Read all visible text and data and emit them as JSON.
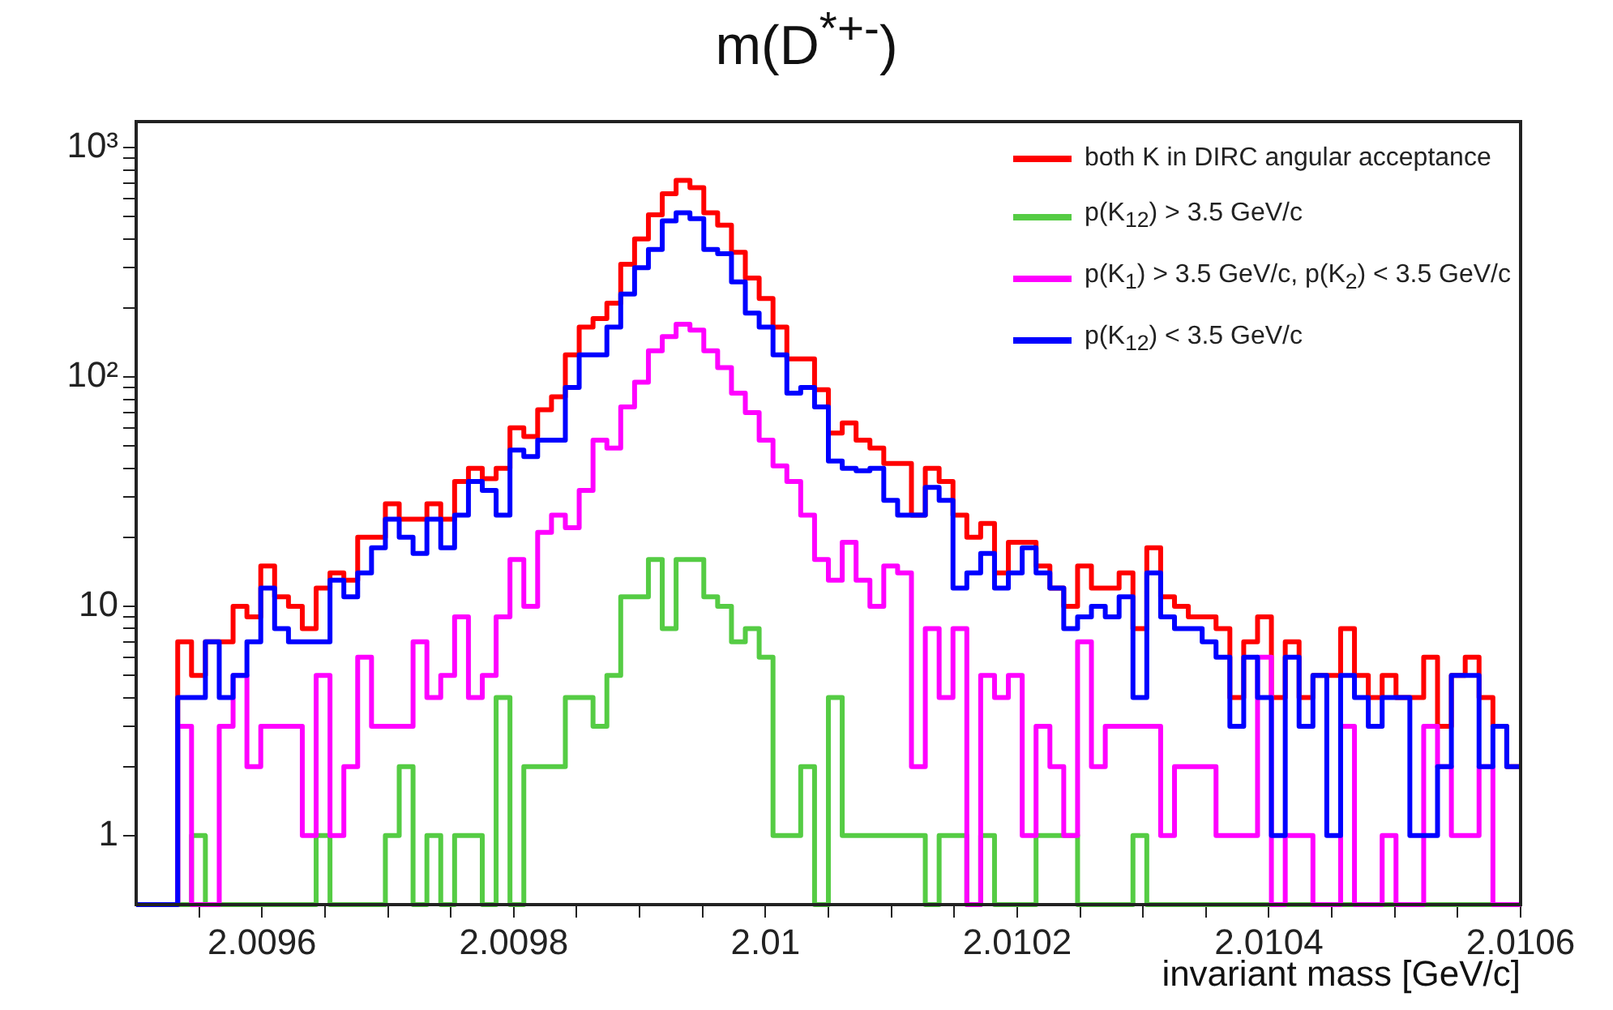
{
  "chart_data": {
    "type": "histogram",
    "title": "m(D$^{*+-}$)",
    "xlabel": "invariant mass [GeV/c]",
    "bins": [
      2.0095,
      2.009511,
      2.009522,
      2.009533,
      2.009544,
      2.009555,
      2.009566,
      2.009577,
      2.009588,
      2.009599,
      2.00961,
      2.009621,
      2.009632,
      2.009643,
      2.009654,
      2.009665,
      2.009676,
      2.009687,
      2.009698,
      2.009709,
      2.00972,
      2.009731,
      2.009742,
      2.009753,
      2.009764,
      2.009775,
      2.009786,
      2.009797,
      2.009808,
      2.009819,
      2.00983,
      2.009841,
      2.009852,
      2.009863,
      2.009874,
      2.009885,
      2.009896,
      2.009907,
      2.009918,
      2.009929,
      2.00994,
      2.009951,
      2.009962,
      2.009973,
      2.009984,
      2.009995,
      2.010006,
      2.010017,
      2.010028,
      2.010039,
      2.01005,
      2.010061,
      2.010072,
      2.010083,
      2.010094,
      2.010105,
      2.010116,
      2.010127,
      2.010138,
      2.010149,
      2.01016,
      2.010171,
      2.010182,
      2.010193,
      2.010204,
      2.010215,
      2.010226,
      2.010237,
      2.010248,
      2.010259,
      2.01027,
      2.010281,
      2.010292,
      2.010303,
      2.010314,
      2.010325,
      2.010336,
      2.010347,
      2.010358,
      2.010369,
      2.01038,
      2.010391,
      2.010402,
      2.010413,
      2.010424,
      2.010435,
      2.010446,
      2.010457,
      2.010468,
      2.010479,
      2.01049,
      2.010501,
      2.010512,
      2.010523,
      2.010534,
      2.010545,
      2.010556,
      2.010567,
      2.010578,
      2.010589,
      2.0106
    ],
    "series": [
      {
        "name": "both K in DIRC angular acceptance",
        "color": "#ff0000",
        "values": [
          null,
          null,
          null,
          7,
          5,
          7,
          7,
          10,
          9,
          15,
          11,
          10,
          8,
          12,
          14,
          13,
          20,
          20,
          28,
          24,
          24,
          28,
          24,
          35,
          40,
          36,
          40,
          60,
          55,
          72,
          82,
          125,
          165,
          180,
          210,
          310,
          400,
          510,
          630,
          720,
          670,
          520,
          460,
          350,
          270,
          220,
          165,
          120,
          120,
          88,
          57,
          63,
          53,
          49,
          42,
          42,
          25,
          40,
          35,
          25,
          20,
          23,
          14,
          19,
          19,
          15,
          12,
          10,
          15,
          12,
          12,
          14,
          8,
          18,
          11,
          10,
          9,
          9,
          8,
          4,
          7,
          9,
          4,
          7,
          4,
          5,
          5,
          8,
          5,
          4,
          5,
          4,
          4,
          6,
          3,
          5,
          6,
          4,
          3,
          2
        ]
      },
      {
        "name": "p(K$_{12}$) > 3.5 GeV/c",
        "color": "#55cc44",
        "values": [
          null,
          null,
          null,
          null,
          1,
          null,
          null,
          null,
          null,
          null,
          null,
          null,
          null,
          1,
          null,
          null,
          null,
          null,
          1,
          2,
          null,
          1,
          null,
          1,
          1,
          null,
          4,
          null,
          2,
          2,
          2,
          4,
          4,
          3,
          5,
          11,
          11,
          16,
          8,
          16,
          16,
          11,
          10,
          7,
          8,
          6,
          1,
          1,
          2,
          null,
          4,
          1,
          1,
          1,
          1,
          1,
          1,
          null,
          1,
          1,
          null,
          1,
          null,
          null,
          null,
          1,
          1,
          1,
          null,
          null,
          null,
          null,
          1,
          null,
          null,
          null,
          null,
          null,
          null,
          null,
          null,
          null,
          null,
          null,
          null,
          null,
          null,
          null,
          null,
          null,
          null,
          null,
          null,
          null,
          null,
          null,
          null,
          null,
          null,
          null
        ]
      },
      {
        "name": "p(K$_{1}$) > 3.5 GeV/c, p(K$_{2}$) < 3.5 GeV/c",
        "color": "#ff00ff",
        "values": [
          null,
          null,
          null,
          3,
          null,
          null,
          3,
          5,
          2,
          3,
          3,
          3,
          1,
          5,
          1,
          2,
          6,
          3,
          3,
          3,
          7,
          4,
          5,
          9,
          4,
          5,
          9,
          16,
          10,
          21,
          25,
          22,
          32,
          53,
          49,
          74,
          95,
          130,
          150,
          170,
          160,
          130,
          110,
          85,
          70,
          53,
          41,
          35,
          25,
          16,
          13,
          19,
          13,
          10,
          15,
          14,
          2,
          8,
          4,
          8,
          null,
          5,
          4,
          5,
          1,
          3,
          2,
          1,
          7,
          2,
          3,
          3,
          3,
          3,
          1,
          2,
          2,
          2,
          1,
          1,
          1,
          6,
          null,
          1,
          1,
          null,
          null,
          3,
          null,
          null,
          1,
          null,
          null,
          3,
          2,
          1,
          1,
          2,
          null,
          null
        ]
      },
      {
        "name": "p(K$_{12}$) < 3.5 GeV/c",
        "color": "#0000ff",
        "values": [
          null,
          null,
          null,
          4,
          4,
          7,
          4,
          5,
          7,
          12,
          8,
          7,
          7,
          7,
          13,
          11,
          14,
          18,
          24,
          20,
          17,
          24,
          18,
          25,
          35,
          32,
          25,
          48,
          45,
          53,
          53,
          90,
          125,
          125,
          165,
          230,
          300,
          360,
          480,
          520,
          490,
          360,
          345,
          260,
          190,
          165,
          125,
          85,
          90,
          74,
          43,
          40,
          39,
          40,
          29,
          25,
          25,
          33,
          29,
          12,
          14,
          17,
          12,
          14,
          18,
          14,
          12,
          8,
          9,
          10,
          9,
          11,
          4,
          14,
          9,
          8,
          8,
          7,
          6,
          3,
          6,
          4,
          1,
          6,
          3,
          5,
          1,
          5,
          4,
          3,
          4,
          4,
          1,
          1,
          2,
          5,
          5,
          2,
          3,
          2
        ]
      }
    ],
    "log": "y",
    "xlim": [
      2.0095,
      2.0106
    ],
    "ylim": [
      0.5,
      1300
    ],
    "xticks": [
      {
        "value": 2.00955,
        "label": null
      },
      2.0096,
      {
        "value": 2.00965,
        "label": null
      },
      {
        "value": 2.0097,
        "label": null
      },
      {
        "value": 2.00975,
        "label": null
      },
      2.0098,
      {
        "value": 2.00985,
        "label": null
      },
      {
        "value": 2.0099,
        "label": null
      },
      {
        "value": 2.00995,
        "label": null
      },
      2.01,
      {
        "value": 2.01005,
        "label": null
      },
      {
        "value": 2.0101,
        "label": null
      },
      {
        "value": 2.01015,
        "label": null
      },
      2.0102,
      {
        "value": 2.01025,
        "label": null
      },
      {
        "value": 2.0103,
        "label": null
      },
      {
        "value": 2.01035,
        "label": null
      },
      2.0104,
      {
        "value": 2.01045,
        "label": null
      },
      {
        "value": 2.0105,
        "label": null
      },
      {
        "value": 2.01055,
        "label": null
      },
      2.0106
    ],
    "yticks": [
      1,
      {
        "value": 2,
        "label": null
      },
      {
        "value": 3,
        "label": null
      },
      {
        "value": 4,
        "label": null
      },
      {
        "value": 5,
        "label": null
      },
      {
        "value": 6,
        "label": null
      },
      {
        "value": 7,
        "label": null
      },
      {
        "value": 8,
        "label": null
      },
      {
        "value": 9,
        "label": null
      },
      10,
      {
        "value": 20,
        "label": null
      },
      {
        "value": 30,
        "label": null
      },
      {
        "value": 40,
        "label": null
      },
      {
        "value": 50,
        "label": null
      },
      {
        "value": 60,
        "label": null
      },
      {
        "value": 70,
        "label": null
      },
      {
        "value": 80,
        "label": null
      },
      {
        "value": 90,
        "label": null
      },
      {
        "value": 100,
        "label": "10²"
      },
      {
        "value": 200,
        "label": null
      },
      {
        "value": 300,
        "label": null
      },
      {
        "value": 400,
        "label": null
      },
      {
        "value": 500,
        "label": null
      },
      {
        "value": 600,
        "label": null
      },
      {
        "value": 700,
        "label": null
      },
      {
        "value": 800,
        "label": null
      },
      {
        "value": 900,
        "label": null
      },
      {
        "value": 1000,
        "label": "10³"
      }
    ],
    "grid": false,
    "legend": "top right",
    "marker": "none",
    "line_style": "solid"
  }
}
